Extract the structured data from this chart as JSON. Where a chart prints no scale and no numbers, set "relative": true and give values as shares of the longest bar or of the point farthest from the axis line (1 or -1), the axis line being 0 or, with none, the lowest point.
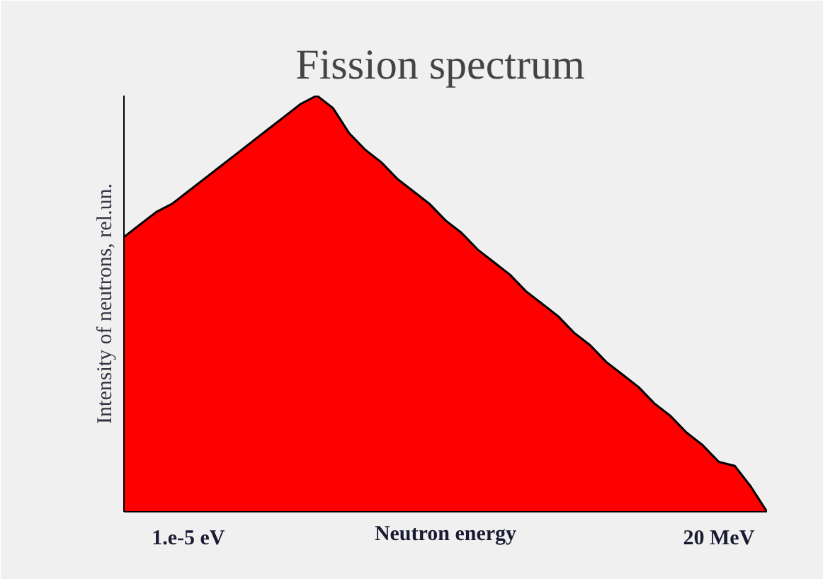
{
  "chart_data": {
    "type": "area",
    "title": "Fission  spectrum",
    "xlabel": "Neutron energy",
    "ylabel": "Intensity of neutrons, rel.un.",
    "relative": true,
    "categories": [
      null,
      null,
      null,
      null,
      "1.e-5 eV",
      null,
      null,
      null,
      null,
      null,
      null,
      null,
      null,
      null,
      null,
      null,
      null,
      null,
      null,
      null,
      null,
      null,
      null,
      null,
      null,
      null,
      null,
      null,
      null,
      null,
      null,
      null,
      null,
      null,
      null,
      null,
      null,
      "20 MeV",
      null,
      null,
      null
    ],
    "series": [
      {
        "color": "#ff0000",
        "values": [
          0.66,
          0.69,
          0.72,
          0.74,
          0.77,
          0.8,
          0.83,
          0.86,
          0.89,
          0.92,
          0.95,
          0.98,
          1.0,
          0.97,
          0.91,
          0.87,
          0.84,
          0.8,
          0.77,
          0.74,
          0.7,
          0.67,
          0.63,
          0.6,
          0.57,
          0.53,
          0.5,
          0.47,
          0.43,
          0.4,
          0.36,
          0.33,
          0.3,
          0.26,
          0.23,
          0.19,
          0.16,
          0.12,
          0.11,
          0.06,
          0
        ]
      }
    ]
  }
}
